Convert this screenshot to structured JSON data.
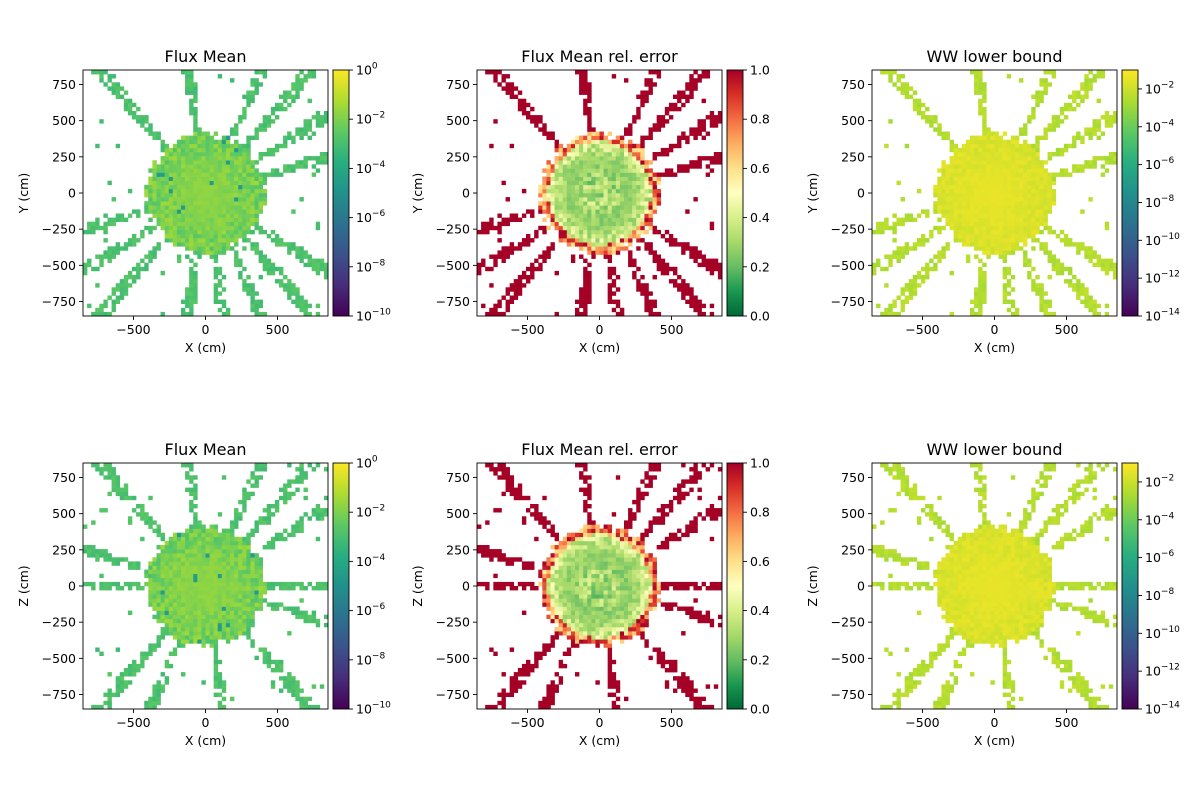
{
  "figure": {
    "background": "#ffffff"
  },
  "chart_data": [
    {
      "type": "heatmap",
      "title": "Flux Mean",
      "xlabel": "X (cm)",
      "ylabel": "Y (cm)",
      "xlim": [
        -850,
        850
      ],
      "ylim": [
        -850,
        850
      ],
      "xticks": [
        "−500",
        "0",
        "500"
      ],
      "yticks": [
        "−750",
        "−500",
        "−250",
        "0",
        "250",
        "500",
        "750"
      ],
      "colormap": "viridis",
      "scale": "log",
      "colorbar": {
        "range": [
          1e-10,
          1
        ],
        "ticks": [
          {
            "base": "10",
            "exp": "0",
            "value": 0
          },
          {
            "base": "10",
            "exp": "−2",
            "value": -2
          },
          {
            "base": "10",
            "exp": "−4",
            "value": -4
          },
          {
            "base": "10",
            "exp": "−6",
            "value": -6
          },
          {
            "base": "10",
            "exp": "−8",
            "value": -8
          },
          {
            "base": "10",
            "exp": "−10",
            "value": -10
          }
        ]
      },
      "field": {
        "plane": "xy",
        "center_value": 0.05,
        "core_radius_cm": 420
      }
    },
    {
      "type": "heatmap",
      "title": "Flux Mean rel. error",
      "xlabel": "X (cm)",
      "ylabel": "Y (cm)",
      "xlim": [
        -850,
        850
      ],
      "ylim": [
        -850,
        850
      ],
      "xticks": [
        "−500",
        "0",
        "500"
      ],
      "yticks": [
        "−750",
        "−500",
        "−250",
        "0",
        "250",
        "500",
        "750"
      ],
      "colormap": "RdYlGn_r",
      "scale": "linear",
      "colorbar": {
        "range": [
          0,
          1
        ],
        "ticks": [
          {
            "label": "0.0",
            "value": 0
          },
          {
            "label": "0.2",
            "value": 0.2
          },
          {
            "label": "0.4",
            "value": 0.4
          },
          {
            "label": "0.6",
            "value": 0.6
          },
          {
            "label": "0.8",
            "value": 0.8
          },
          {
            "label": "1.0",
            "value": 1.0
          }
        ]
      },
      "field": {
        "plane": "xy",
        "center_value": 0.25,
        "core_radius_cm": 420
      }
    },
    {
      "type": "heatmap",
      "title": "WW lower bound",
      "xlabel": "X (cm)",
      "ylabel": "Y (cm)",
      "xlim": [
        -850,
        850
      ],
      "ylim": [
        -850,
        850
      ],
      "xticks": [
        "−500",
        "0",
        "500"
      ],
      "yticks": [
        "−750",
        "−500",
        "−250",
        "0",
        "250",
        "500",
        "750"
      ],
      "colormap": "viridis",
      "scale": "log",
      "colorbar": {
        "range": [
          1e-14,
          0.1
        ],
        "ticks": [
          {
            "base": "10",
            "exp": "−2",
            "value": -2
          },
          {
            "base": "10",
            "exp": "−4",
            "value": -4
          },
          {
            "base": "10",
            "exp": "−6",
            "value": -6
          },
          {
            "base": "10",
            "exp": "−8",
            "value": -8
          },
          {
            "base": "10",
            "exp": "−10",
            "value": -10
          },
          {
            "base": "10",
            "exp": "−12",
            "value": -12
          },
          {
            "base": "10",
            "exp": "−14",
            "value": -14
          }
        ]
      },
      "field": {
        "plane": "xy",
        "center_value": 0.1,
        "core_radius_cm": 420
      }
    },
    {
      "type": "heatmap",
      "title": "Flux Mean",
      "xlabel": "X (cm)",
      "ylabel": "Z (cm)",
      "xlim": [
        -850,
        850
      ],
      "ylim": [
        -850,
        850
      ],
      "xticks": [
        "−500",
        "0",
        "500"
      ],
      "yticks": [
        "−750",
        "−500",
        "−250",
        "0",
        "250",
        "500",
        "750"
      ],
      "colormap": "viridis",
      "scale": "log",
      "colorbar": {
        "range": [
          1e-10,
          1
        ],
        "ticks": [
          {
            "base": "10",
            "exp": "0",
            "value": 0
          },
          {
            "base": "10",
            "exp": "−2",
            "value": -2
          },
          {
            "base": "10",
            "exp": "−4",
            "value": -4
          },
          {
            "base": "10",
            "exp": "−6",
            "value": -6
          },
          {
            "base": "10",
            "exp": "−8",
            "value": -8
          },
          {
            "base": "10",
            "exp": "−10",
            "value": -10
          }
        ]
      },
      "field": {
        "plane": "xz",
        "center_value": 0.05,
        "core_radius_cm": 420
      }
    },
    {
      "type": "heatmap",
      "title": "Flux Mean rel. error",
      "xlabel": "X (cm)",
      "ylabel": "Z (cm)",
      "xlim": [
        -850,
        850
      ],
      "ylim": [
        -850,
        850
      ],
      "xticks": [
        "−500",
        "0",
        "500"
      ],
      "yticks": [
        "−750",
        "−500",
        "−250",
        "0",
        "250",
        "500",
        "750"
      ],
      "colormap": "RdYlGn_r",
      "scale": "linear",
      "colorbar": {
        "range": [
          0,
          1
        ],
        "ticks": [
          {
            "label": "0.0",
            "value": 0
          },
          {
            "label": "0.2",
            "value": 0.2
          },
          {
            "label": "0.4",
            "value": 0.4
          },
          {
            "label": "0.6",
            "value": 0.6
          },
          {
            "label": "0.8",
            "value": 0.8
          },
          {
            "label": "1.0",
            "value": 1.0
          }
        ]
      },
      "field": {
        "plane": "xz",
        "center_value": 0.25,
        "core_radius_cm": 420
      }
    },
    {
      "type": "heatmap",
      "title": "WW lower bound",
      "xlabel": "X (cm)",
      "ylabel": "Z (cm)",
      "xlim": [
        -850,
        850
      ],
      "ylim": [
        -850,
        850
      ],
      "xticks": [
        "−500",
        "0",
        "500"
      ],
      "yticks": [
        "−750",
        "−500",
        "−250",
        "0",
        "250",
        "500",
        "750"
      ],
      "colormap": "viridis",
      "scale": "log",
      "colorbar": {
        "range": [
          1e-14,
          0.1
        ],
        "ticks": [
          {
            "base": "10",
            "exp": "−2",
            "value": -2
          },
          {
            "base": "10",
            "exp": "−4",
            "value": -4
          },
          {
            "base": "10",
            "exp": "−6",
            "value": -6
          },
          {
            "base": "10",
            "exp": "−8",
            "value": -8
          },
          {
            "base": "10",
            "exp": "−10",
            "value": -10
          },
          {
            "base": "10",
            "exp": "−12",
            "value": -12
          },
          {
            "base": "10",
            "exp": "−14",
            "value": -14
          }
        ]
      },
      "field": {
        "plane": "xz",
        "center_value": 0.1,
        "core_radius_cm": 420
      }
    }
  ]
}
